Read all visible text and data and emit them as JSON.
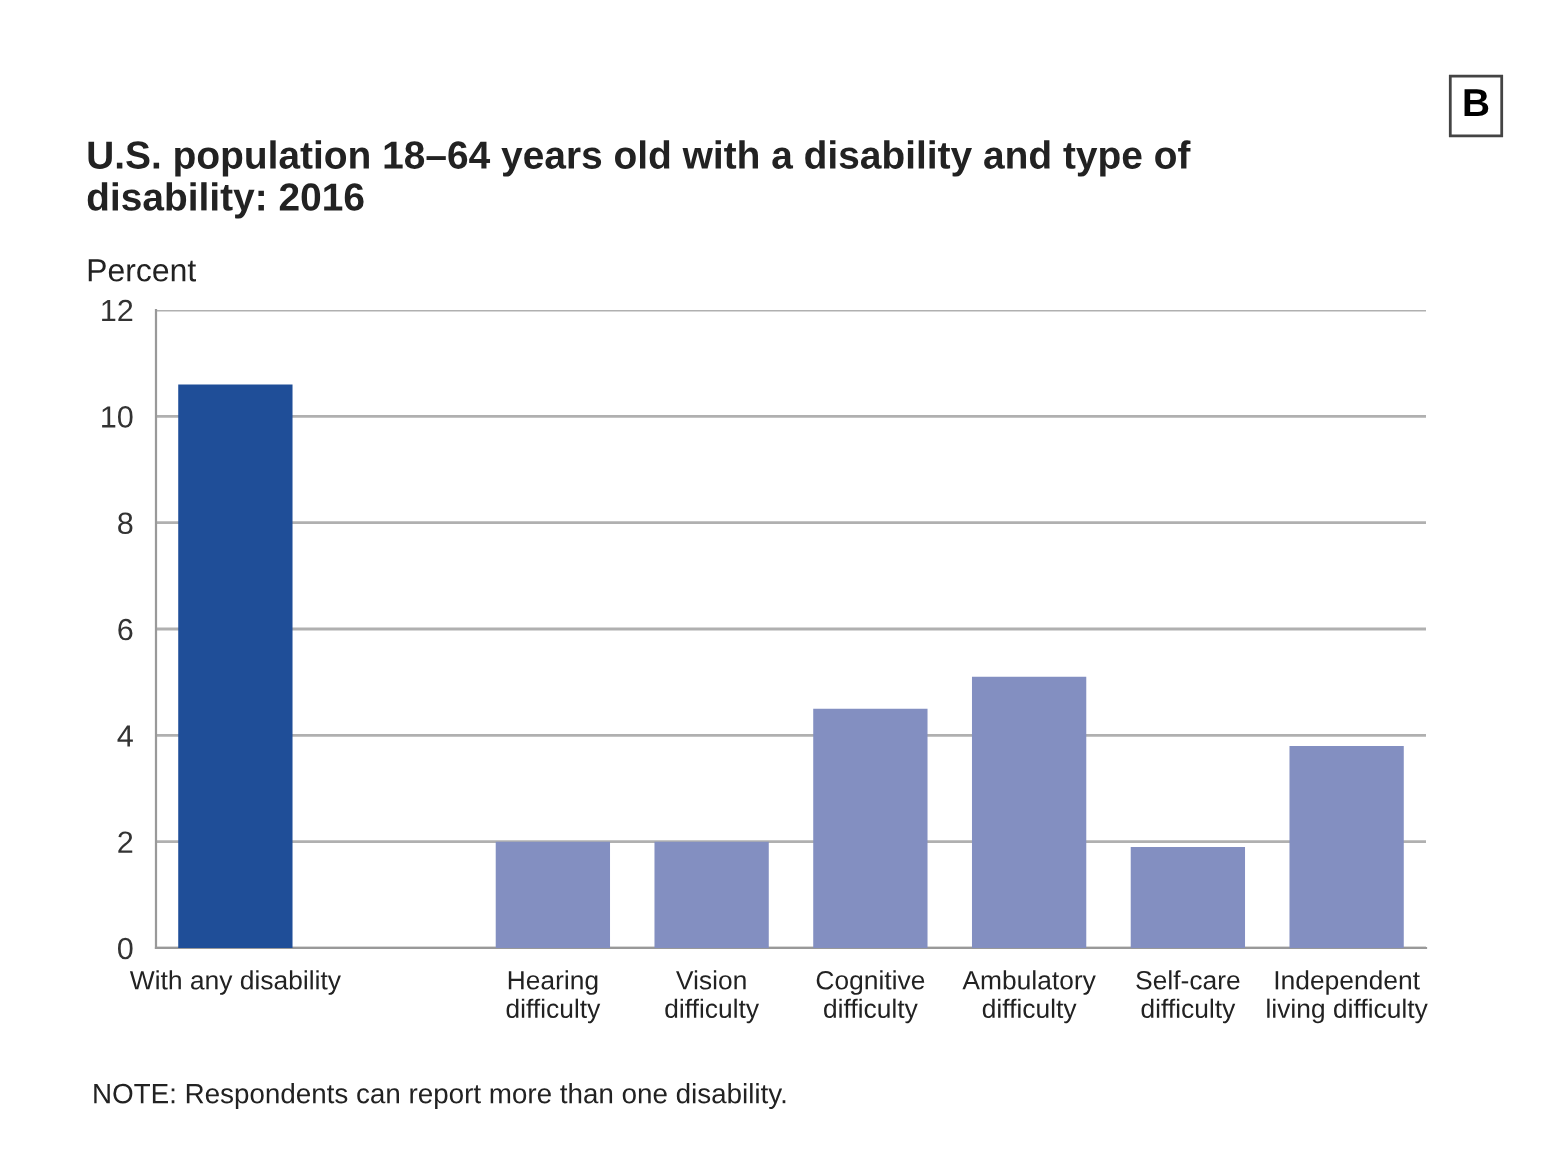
{
  "chart_data": {
    "type": "bar",
    "title": "U.S. population 18–64 years old with a disability and type of\ndisability: 2016",
    "ylabel": "Percent",
    "categories": [
      "With any disability",
      null,
      "Hearing\ndifficulty",
      "Vision\ndifficulty",
      "Cognitive\ndifficulty",
      "Ambulatory\ndifficulty",
      "Self-care\ndifficulty",
      "Independent\nliving difficulty"
    ],
    "values": [
      10.6,
      null,
      2.0,
      2.0,
      4.5,
      5.1,
      1.9,
      3.8
    ],
    "colors": [
      "#1f4e98",
      null,
      "#838fc1",
      "#838fc1",
      "#838fc1",
      "#838fc1",
      "#838fc1",
      "#838fc1"
    ],
    "ylim": [
      0,
      12
    ],
    "yticks": [
      0,
      2,
      4,
      6,
      8,
      10,
      12
    ],
    "grid": "y",
    "annotations": [
      "B",
      "NOTE: Respondents can report more than one disability."
    ]
  }
}
